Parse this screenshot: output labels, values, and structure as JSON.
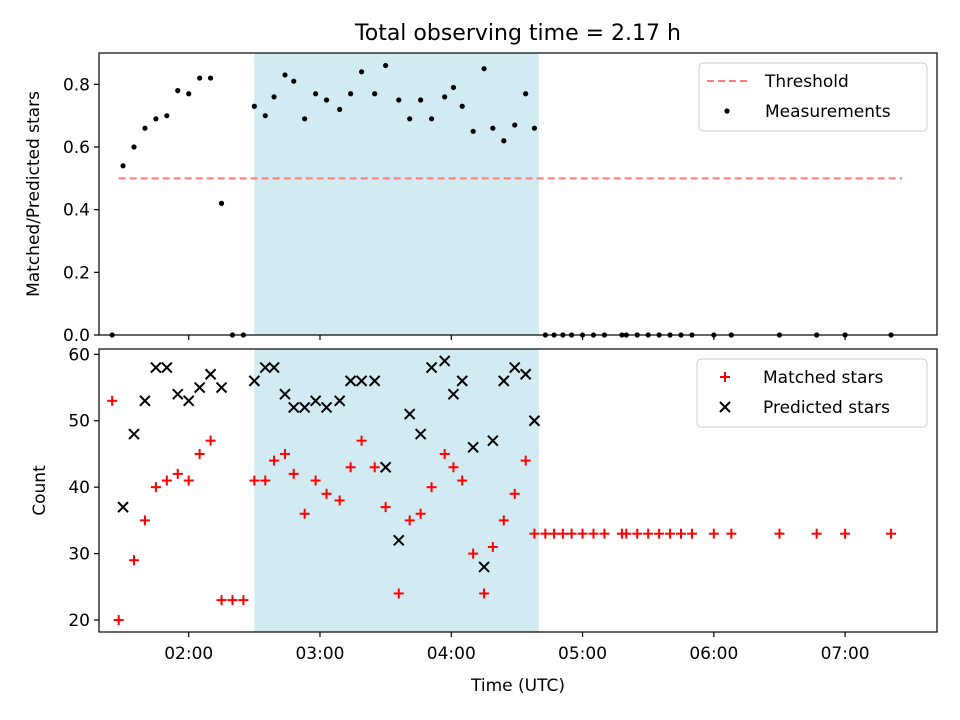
{
  "figure": {
    "title": "Total observing time = 2.17 h"
  },
  "chart_data": [
    {
      "type": "scatter",
      "panel": "top",
      "xlabel": "",
      "ylabel": "Matched/Predicted stars",
      "xlim": [
        "01:19",
        "07:42"
      ],
      "ylim": [
        0,
        0.9
      ],
      "yticks": [
        0.0,
        0.2,
        0.4,
        0.6,
        0.8
      ],
      "ytick_labels": [
        "0.0",
        "0.2",
        "0.4",
        "0.6",
        "0.8"
      ],
      "xticks": [
        "02:00",
        "03:00",
        "04:00",
        "05:00",
        "06:00",
        "07:00"
      ],
      "grid": false,
      "legend": "top-right",
      "highlight_span": {
        "start": "02:30",
        "end": "04:40",
        "color": "#add8e6"
      },
      "series": [
        {
          "name": "Threshold",
          "style": "dashed-line",
          "color": "#ff7b7b",
          "points": [
            [
              "01:28",
              0.5
            ],
            [
              "07:26",
              0.5
            ]
          ]
        },
        {
          "name": "Measurements",
          "style": "dot",
          "color": "#000000",
          "points": [
            [
              "01:25",
              0.0
            ],
            [
              "01:30",
              0.54
            ],
            [
              "01:35",
              0.6
            ],
            [
              "01:40",
              0.66
            ],
            [
              "01:45",
              0.69
            ],
            [
              "01:50",
              0.7
            ],
            [
              "01:55",
              0.78
            ],
            [
              "02:00",
              0.77
            ],
            [
              "02:05",
              0.82
            ],
            [
              "02:10",
              0.82
            ],
            [
              "02:15",
              0.42
            ],
            [
              "02:20",
              0.0
            ],
            [
              "02:25",
              0.0
            ],
            [
              "02:30",
              0.73
            ],
            [
              "02:35",
              0.7
            ],
            [
              "02:39",
              0.76
            ],
            [
              "02:44",
              0.83
            ],
            [
              "02:48",
              0.81
            ],
            [
              "02:53",
              0.69
            ],
            [
              "02:58",
              0.77
            ],
            [
              "03:03",
              0.75
            ],
            [
              "03:09",
              0.72
            ],
            [
              "03:14",
              0.77
            ],
            [
              "03:19",
              0.84
            ],
            [
              "03:25",
              0.77
            ],
            [
              "03:30",
              0.86
            ],
            [
              "03:36",
              0.75
            ],
            [
              "03:41",
              0.69
            ],
            [
              "03:46",
              0.75
            ],
            [
              "03:51",
              0.69
            ],
            [
              "03:57",
              0.76
            ],
            [
              "04:01",
              0.79
            ],
            [
              "04:05",
              0.73
            ],
            [
              "04:10",
              0.65
            ],
            [
              "04:15",
              0.85
            ],
            [
              "04:19",
              0.66
            ],
            [
              "04:24",
              0.62
            ],
            [
              "04:29",
              0.67
            ],
            [
              "04:34",
              0.77
            ],
            [
              "04:38",
              0.66
            ],
            [
              "04:43",
              0.0
            ],
            [
              "04:47",
              0.0
            ],
            [
              "04:51",
              0.0
            ],
            [
              "04:55",
              0.0
            ],
            [
              "05:00",
              0.0
            ],
            [
              "05:05",
              0.0
            ],
            [
              "05:10",
              0.0
            ],
            [
              "05:18",
              0.0
            ],
            [
              "05:20",
              0.0
            ],
            [
              "05:25",
              0.0
            ],
            [
              "05:30",
              0.0
            ],
            [
              "05:35",
              0.0
            ],
            [
              "05:40",
              0.0
            ],
            [
              "05:45",
              0.0
            ],
            [
              "05:50",
              0.0
            ],
            [
              "06:00",
              0.0
            ],
            [
              "06:08",
              0.0
            ],
            [
              "06:30",
              0.0
            ],
            [
              "06:47",
              0.0
            ],
            [
              "07:00",
              0.0
            ],
            [
              "07:21",
              0.0
            ]
          ]
        }
      ]
    },
    {
      "type": "scatter",
      "panel": "bottom",
      "xlabel": "Time (UTC)",
      "ylabel": "Count",
      "xlim": [
        "01:19",
        "07:42"
      ],
      "ylim": [
        18.2,
        60.8
      ],
      "yticks": [
        20,
        30,
        40,
        50,
        60
      ],
      "ytick_labels": [
        "20",
        "30",
        "40",
        "50",
        "60"
      ],
      "xticks": [
        "02:00",
        "03:00",
        "04:00",
        "05:00",
        "06:00",
        "07:00"
      ],
      "xtick_labels": [
        "02:00",
        "03:00",
        "04:00",
        "05:00",
        "06:00",
        "07:00"
      ],
      "grid": false,
      "legend": "top-right",
      "highlight_span": {
        "start": "02:30",
        "end": "04:40",
        "color": "#add8e6"
      },
      "series": [
        {
          "name": "Matched stars",
          "marker": "+",
          "color": "#ff0000",
          "points": [
            [
              "01:25",
              53
            ],
            [
              "01:28",
              20
            ],
            [
              "01:35",
              29
            ],
            [
              "01:40",
              35
            ],
            [
              "01:45",
              40
            ],
            [
              "01:50",
              41
            ],
            [
              "01:55",
              42
            ],
            [
              "02:00",
              41
            ],
            [
              "02:05",
              45
            ],
            [
              "02:10",
              47
            ],
            [
              "02:15",
              23
            ],
            [
              "02:20",
              23
            ],
            [
              "02:25",
              23
            ],
            [
              "02:30",
              41
            ],
            [
              "02:35",
              41
            ],
            [
              "02:39",
              44
            ],
            [
              "02:44",
              45
            ],
            [
              "02:48",
              42
            ],
            [
              "02:53",
              36
            ],
            [
              "02:58",
              41
            ],
            [
              "03:03",
              39
            ],
            [
              "03:09",
              38
            ],
            [
              "03:14",
              43
            ],
            [
              "03:19",
              47
            ],
            [
              "03:25",
              43
            ],
            [
              "03:30",
              37
            ],
            [
              "03:36",
              24
            ],
            [
              "03:41",
              35
            ],
            [
              "03:46",
              36
            ],
            [
              "03:51",
              40
            ],
            [
              "03:57",
              45
            ],
            [
              "04:01",
              43
            ],
            [
              "04:05",
              41
            ],
            [
              "04:10",
              30
            ],
            [
              "04:15",
              24
            ],
            [
              "04:19",
              31
            ],
            [
              "04:24",
              35
            ],
            [
              "04:29",
              39
            ],
            [
              "04:34",
              44
            ],
            [
              "04:38",
              33
            ],
            [
              "04:43",
              33
            ],
            [
              "04:47",
              33
            ],
            [
              "04:51",
              33
            ],
            [
              "04:55",
              33
            ],
            [
              "05:00",
              33
            ],
            [
              "05:05",
              33
            ],
            [
              "05:10",
              33
            ],
            [
              "05:18",
              33
            ],
            [
              "05:20",
              33
            ],
            [
              "05:25",
              33
            ],
            [
              "05:30",
              33
            ],
            [
              "05:35",
              33
            ],
            [
              "05:40",
              33
            ],
            [
              "05:45",
              33
            ],
            [
              "05:50",
              33
            ],
            [
              "06:00",
              33
            ],
            [
              "06:08",
              33
            ],
            [
              "06:30",
              33
            ],
            [
              "06:47",
              33
            ],
            [
              "07:00",
              33
            ],
            [
              "07:21",
              33
            ]
          ]
        },
        {
          "name": "Predicted stars",
          "marker": "x",
          "color": "#000000",
          "points": [
            [
              "01:30",
              37
            ],
            [
              "01:35",
              48
            ],
            [
              "01:40",
              53
            ],
            [
              "01:45",
              58
            ],
            [
              "01:50",
              58
            ],
            [
              "01:55",
              54
            ],
            [
              "02:00",
              53
            ],
            [
              "02:05",
              55
            ],
            [
              "02:10",
              57
            ],
            [
              "02:15",
              55
            ],
            [
              "02:30",
              56
            ],
            [
              "02:35",
              58
            ],
            [
              "02:39",
              58
            ],
            [
              "02:44",
              54
            ],
            [
              "02:48",
              52
            ],
            [
              "02:53",
              52
            ],
            [
              "02:58",
              53
            ],
            [
              "03:03",
              52
            ],
            [
              "03:09",
              53
            ],
            [
              "03:14",
              56
            ],
            [
              "03:19",
              56
            ],
            [
              "03:25",
              56
            ],
            [
              "03:30",
              43
            ],
            [
              "03:36",
              32
            ],
            [
              "03:41",
              51
            ],
            [
              "03:46",
              48
            ],
            [
              "03:51",
              58
            ],
            [
              "03:57",
              59
            ],
            [
              "04:01",
              54
            ],
            [
              "04:05",
              56
            ],
            [
              "04:10",
              46
            ],
            [
              "04:15",
              28
            ],
            [
              "04:19",
              47
            ],
            [
              "04:24",
              56
            ],
            [
              "04:29",
              58
            ],
            [
              "04:34",
              57
            ],
            [
              "04:38",
              50
            ]
          ]
        }
      ]
    }
  ]
}
